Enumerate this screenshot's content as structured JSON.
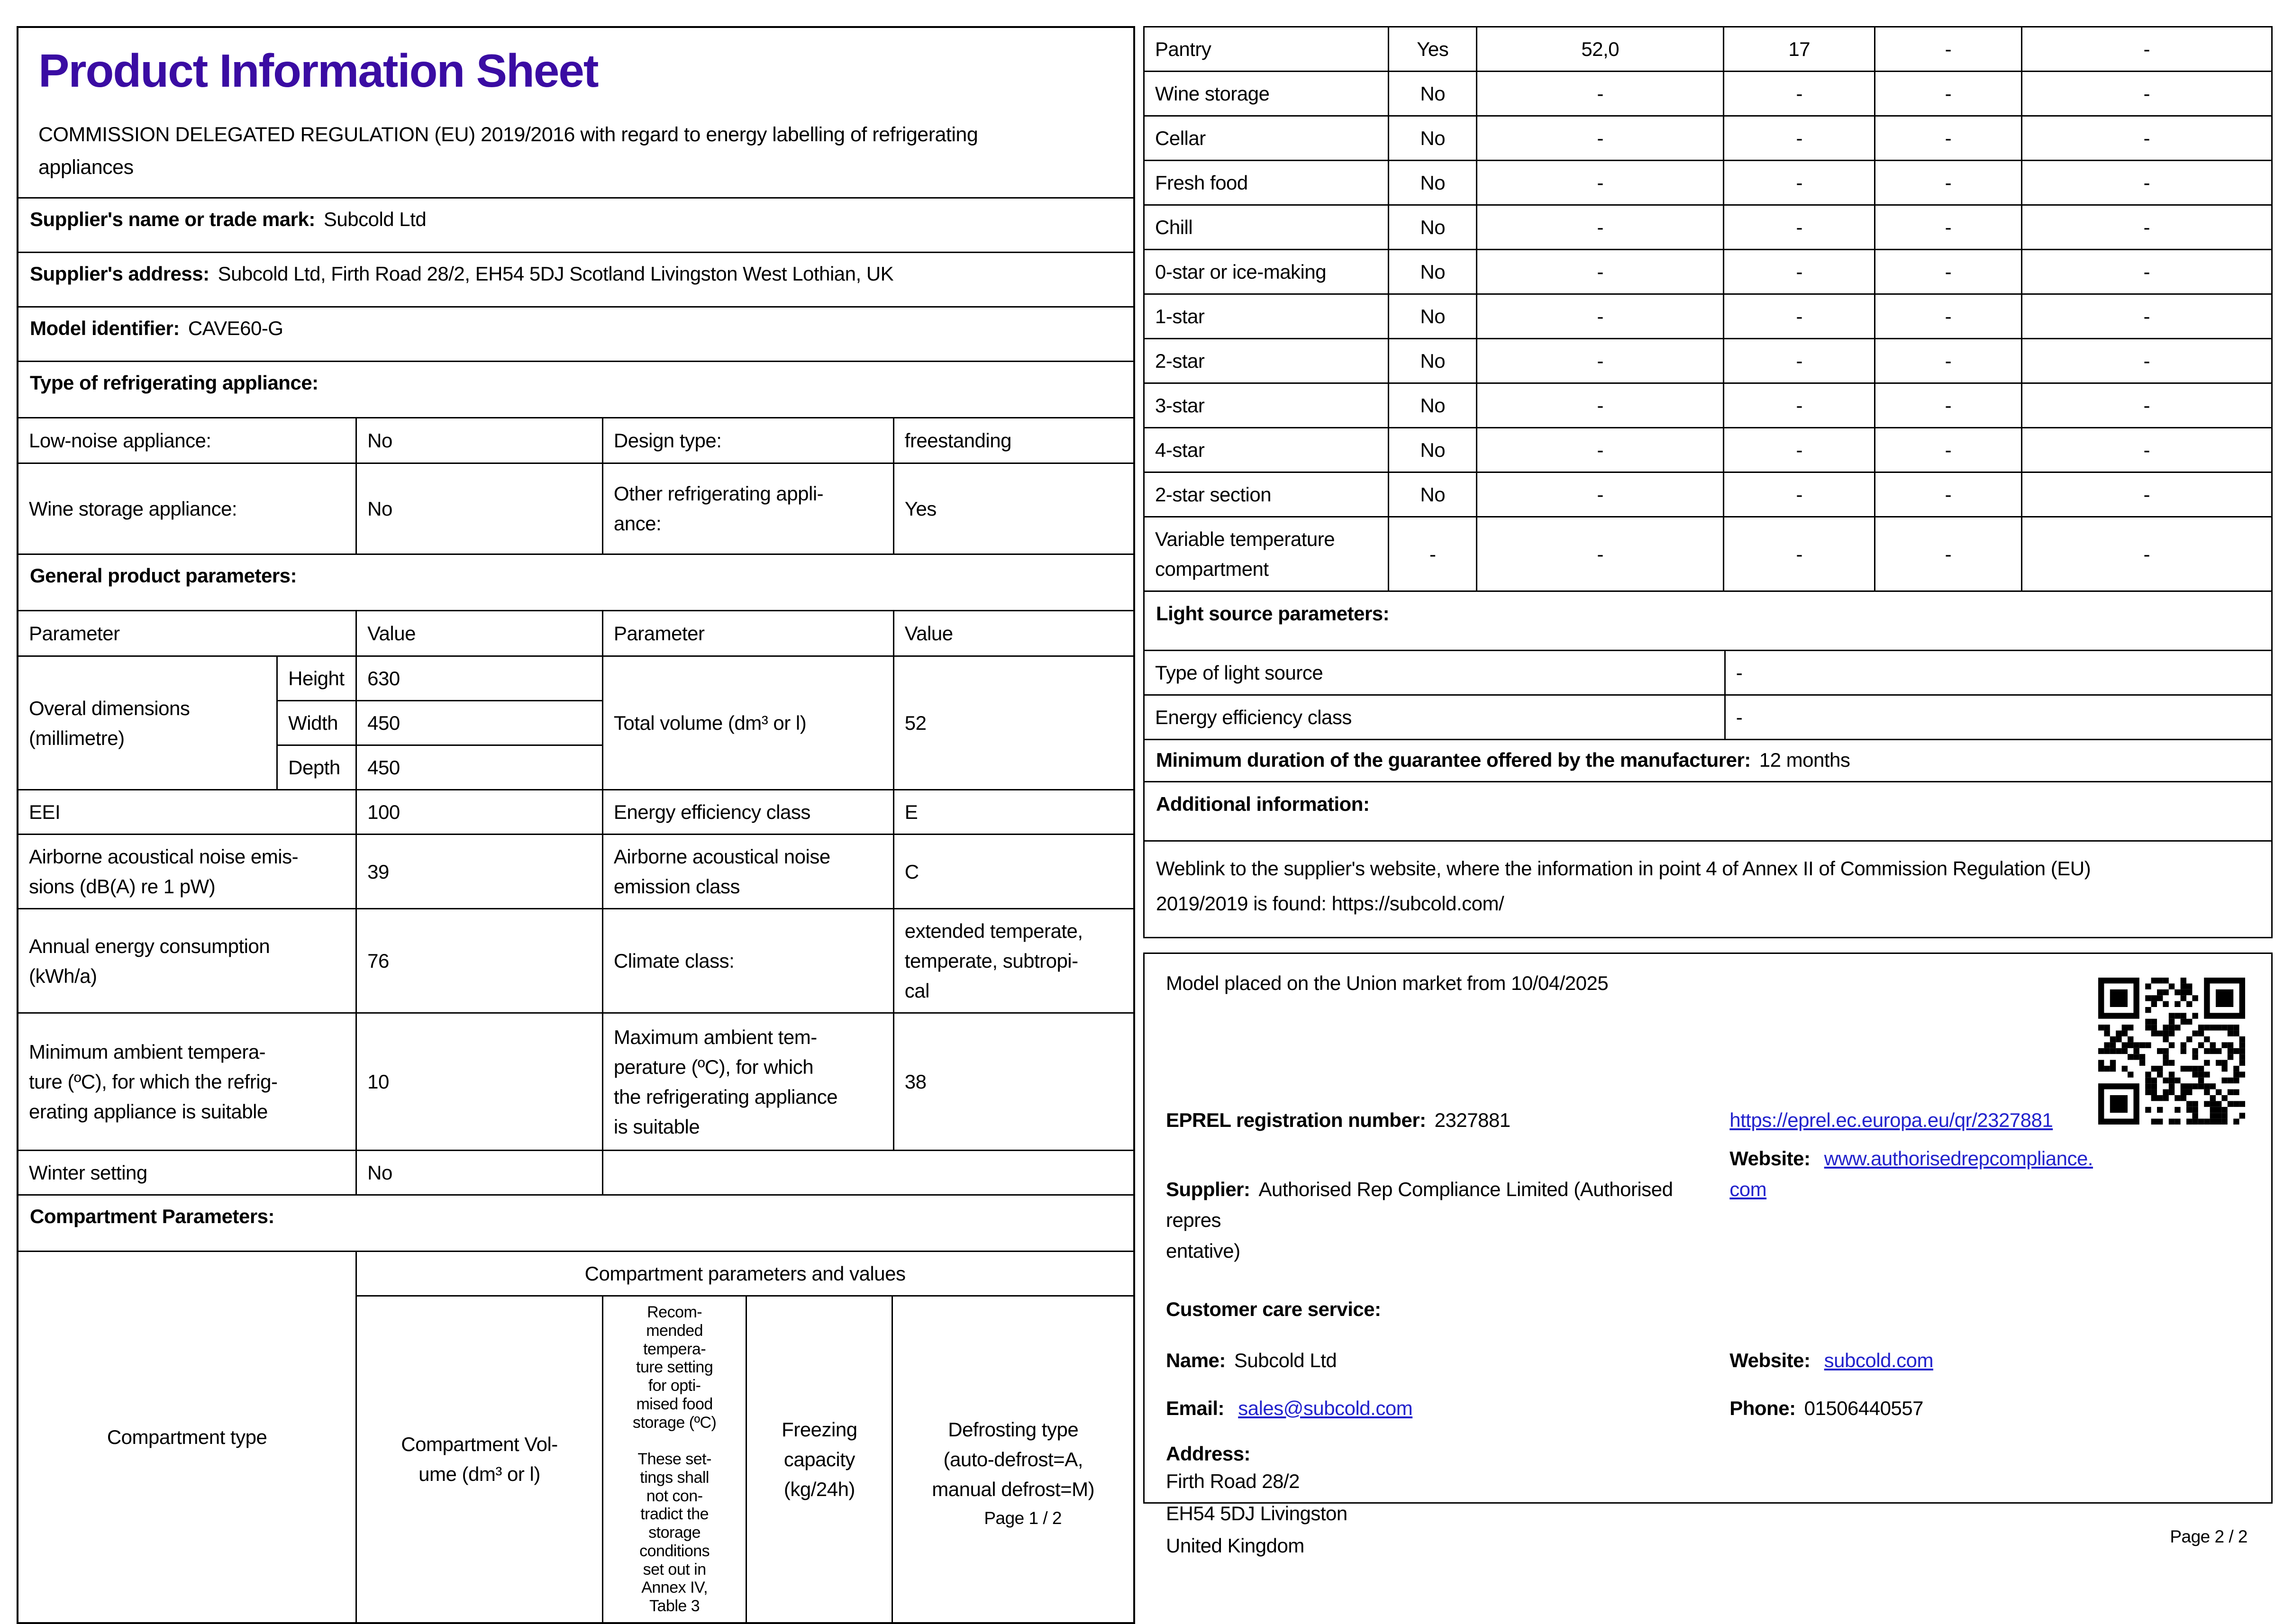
{
  "colors": {
    "title_purple": "#3a0ca3",
    "link_blue": "#2222cc"
  },
  "page1": {
    "title": "Product Information Sheet",
    "subtitle": "COMMISSION DELEGATED REGULATION (EU) 2019/2016 with regard to energy labelling of refrigerating\nappliances",
    "supplier_name": {
      "label": "Supplier's name or trade mark:",
      "value": "Subcold Ltd"
    },
    "supplier_address": {
      "label": "Supplier's address:",
      "value": "Subcold Ltd, Firth Road 28/2, EH54 5DJ Scotland Livingston West Lothian, UK"
    },
    "model_identifier": {
      "label": "Model identifier:",
      "value": "CAVE60-G"
    },
    "type_section": {
      "heading": "Type of refrigerating appliance:",
      "rows": [
        {
          "c1": "Low-noise appliance:",
          "c2": "No",
          "c3": "Design type:",
          "c4": "freestanding"
        },
        {
          "c1": "Wine storage appliance:",
          "c2": "No",
          "c3": "Other refrigerating appli-\nance:",
          "c4": "Yes"
        }
      ]
    },
    "general_section": {
      "heading": "General product parameters:",
      "col_headers": [
        "Parameter",
        "Value",
        "Parameter",
        "Value"
      ],
      "dimensions": {
        "label": "Overal dimensions\n(millimetre)",
        "rows": [
          {
            "name": "Height",
            "value": "630"
          },
          {
            "name": "Width",
            "value": "450"
          },
          {
            "name": "Depth",
            "value": "450"
          }
        ],
        "right_label": "Total volume (dm³ or l)",
        "right_value": "52"
      },
      "rows": [
        {
          "c1": "EEI",
          "c2": "100",
          "c3": "Energy efficiency class",
          "c4": "E"
        },
        {
          "c1": "Airborne acoustical noise emis-\nsions (dB(A) re 1 pW)",
          "c2": "39",
          "c3": "Airborne acoustical noise\nemission class",
          "c4": "C"
        },
        {
          "c1": "Annual energy consumption\n(kWh/a)",
          "c2": "76",
          "c3": "Climate class:",
          "c4": "extended temperate,\ntemperate, subtropi-\ncal"
        },
        {
          "c1": "Minimum ambient tempera-\nture (ºC), for which the refrig-\nerating appliance is suitable",
          "c2": "10",
          "c3": "Maximum ambient tem-\nperature (ºC), for which\nthe refrigerating appliance\nis suitable",
          "c4": "38"
        },
        {
          "c1": "Winter setting",
          "c2": "No",
          "c3": ""
        }
      ]
    },
    "compartment_section": {
      "heading": "Compartment Parameters:",
      "group_header": "Compartment parameters and values",
      "col1": "Compartment type",
      "col2": "Compartment Vol-\nume (dm³ or l)",
      "col3": "Recom-\nmended\ntempera-\nture setting\nfor opti-\nmised food\nstorage (ºC)\n\nThese set-\ntings shall\nnot con-\ntradict the\nstorage\nconditions\nset out in\nAnnex IV,\nTable 3",
      "col4": "Freezing\ncapacity\n(kg/24h)",
      "col5": "Defrosting type\n(auto-defrost=A,\nmanual defrost=M)"
    },
    "footer": "Page 1 / 2"
  },
  "page2": {
    "compartment_rows": [
      {
        "label": "Pantry",
        "present": "Yes",
        "volume": "52,0",
        "temperature": "17",
        "freezing": "-",
        "defrost": "-"
      },
      {
        "label": "Wine storage",
        "present": "No",
        "volume": "-",
        "temperature": "-",
        "freezing": "-",
        "defrost": "-"
      },
      {
        "label": "Cellar",
        "present": "No",
        "volume": "-",
        "temperature": "-",
        "freezing": "-",
        "defrost": "-"
      },
      {
        "label": "Fresh food",
        "present": "No",
        "volume": "-",
        "temperature": "-",
        "freezing": "-",
        "defrost": "-"
      },
      {
        "label": "Chill",
        "present": "No",
        "volume": "-",
        "temperature": "-",
        "freezing": "-",
        "defrost": "-"
      },
      {
        "label": "0-star or ice-making",
        "present": "No",
        "volume": "-",
        "temperature": "-",
        "freezing": "-",
        "defrost": "-"
      },
      {
        "label": "1-star",
        "present": "No",
        "volume": "-",
        "temperature": "-",
        "freezing": "-",
        "defrost": "-"
      },
      {
        "label": "2-star",
        "present": "No",
        "volume": "-",
        "temperature": "-",
        "freezing": "-",
        "defrost": "-"
      },
      {
        "label": "3-star",
        "present": "No",
        "volume": "-",
        "temperature": "-",
        "freezing": "-",
        "defrost": "-"
      },
      {
        "label": "4-star",
        "present": "No",
        "volume": "-",
        "temperature": "-",
        "freezing": "-",
        "defrost": "-"
      },
      {
        "label": "2-star section",
        "present": "No",
        "volume": "-",
        "temperature": "-",
        "freezing": "-",
        "defrost": "-"
      },
      {
        "label": "Variable temperature\ncompartment",
        "present": "-",
        "volume": "-",
        "temperature": "-",
        "freezing": "-",
        "defrost": "-"
      }
    ],
    "light_section": {
      "heading": "Light source parameters:",
      "rows": [
        {
          "label": "Type of light source",
          "value": "-"
        },
        {
          "label": "Energy efficiency class",
          "value": "-"
        }
      ]
    },
    "guarantee": {
      "label": "Minimum duration of the guarantee offered by the manufacturer:",
      "value": "12 months"
    },
    "additional_heading": "Additional information:",
    "weblink_paragraph": "Weblink to the supplier's website, where the information in point 4 of Annex II of Commission Regulation (EU)\n2019/2019 is found:  https://subcold.com/",
    "market_box": {
      "market_text": "Model placed on the Union market from 10/04/2025",
      "eprel": {
        "label": "EPREL registration number:",
        "value": "2327881",
        "link": "https://eprel.ec.europa.eu/qr/2327881"
      },
      "supplier": {
        "label": "Supplier:",
        "value": "Authorised Rep Compliance Limited (Authorised repres\nentative)"
      },
      "website1": {
        "label": "Website:",
        "link": "www.authorisedrepcompliance.\ncom"
      },
      "customer_care_heading": "Customer care service:",
      "name": {
        "label": "Name:",
        "value": "Subcold Ltd"
      },
      "website2": {
        "label": "Website:",
        "link": "subcold.com"
      },
      "email": {
        "label": "Email:",
        "link": "sales@subcold.com"
      },
      "phone": {
        "label": "Phone:",
        "value": "01506440557"
      },
      "address": {
        "label": "Address:",
        "lines": "Firth Road 28/2\n EH54 5DJ Livingston\nUnited Kingdom"
      }
    },
    "footer": "Page 2 / 2"
  }
}
